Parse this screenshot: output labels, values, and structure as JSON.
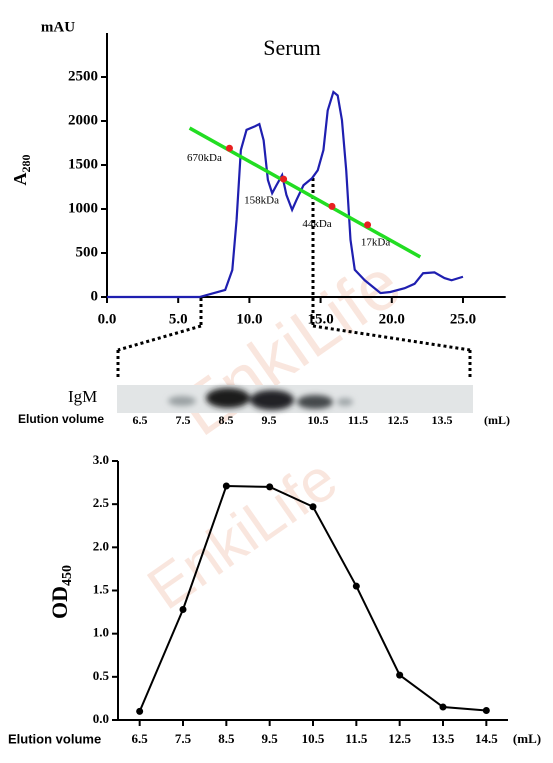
{
  "chart_data": [
    {
      "type": "line",
      "title": "Serum",
      "y_unit": "mAU",
      "y_label": "A",
      "y_label_sub": "280",
      "xlim": [
        0,
        28
      ],
      "xticks": [
        {
          "value": 0,
          "label": "0.0"
        },
        {
          "value": 5,
          "label": "5.0"
        },
        {
          "value": 10,
          "label": "10.0"
        },
        {
          "value": 15,
          "label": "15.0"
        },
        {
          "value": 20,
          "label": "20.0"
        },
        {
          "value": 25,
          "label": "25.0"
        }
      ],
      "ylim": [
        0,
        3000
      ],
      "yticks": [
        0,
        500,
        1000,
        1500,
        2000,
        2500
      ],
      "series": [
        {
          "color": "#1f1fb0",
          "x": [
            0,
            6.5,
            8.3,
            8.8,
            9.1,
            9.4,
            9.8,
            10.4,
            10.7,
            11.0,
            11.3,
            11.6,
            11.9,
            12.3,
            12.6,
            13.0,
            13.3,
            13.8,
            14.4,
            14.8,
            15.2,
            15.5,
            15.9,
            16.2,
            16.5,
            16.8,
            17.1,
            17.4,
            18.1,
            19.2,
            19.9,
            20.9,
            21.6,
            22.2,
            23.0,
            23.7,
            24.2,
            25.0
          ],
          "values": [
            0,
            0,
            80,
            307,
            875,
            1670,
            1900,
            1940,
            1965,
            1780,
            1330,
            1180,
            1270,
            1385,
            1160,
            990,
            1100,
            1270,
            1350,
            1440,
            1670,
            2120,
            2330,
            2290,
            2010,
            1440,
            650,
            310,
            190,
            45,
            57,
            100,
            150,
            270,
            280,
            215,
            190,
            230
          ]
        },
        {
          "color": "#22dd22",
          "x": [
            5.8,
            22.0
          ],
          "values": [
            1920,
            455
          ]
        },
        {
          "color": "#e82020",
          "marker": true,
          "x": [
            8.6,
            12.4,
            15.8,
            18.3
          ],
          "values": [
            1690,
            1340,
            1030,
            820
          ],
          "labels": [
            "670kDa",
            "158kDa",
            "44kDa",
            "17kDa"
          ]
        }
      ]
    },
    {
      "type": "line",
      "y_label": "OD",
      "y_label_sub": "450",
      "x_label": "Elution volume",
      "x_unit": "(mL)",
      "xlim": [
        6,
        15
      ],
      "xticks": [
        6.5,
        7.5,
        8.5,
        9.5,
        10.5,
        11.5,
        12.5,
        13.5,
        14.5
      ],
      "ylim": [
        0,
        3
      ],
      "yticks": [
        {
          "value": 0,
          "label": "0.0"
        },
        0.5,
        {
          "value": 1,
          "label": "1.0"
        },
        1.5,
        {
          "value": 2,
          "label": "2.0"
        },
        2.5,
        {
          "value": 3,
          "label": "3.0"
        }
      ],
      "series": [
        {
          "color": "#000000",
          "marker": true,
          "x": [
            6.5,
            7.5,
            8.5,
            9.5,
            10.5,
            11.5,
            12.5,
            13.5,
            14.5
          ],
          "values": [
            0.1,
            1.28,
            2.71,
            2.7,
            2.47,
            1.55,
            0.52,
            0.15,
            0.11
          ]
        }
      ]
    }
  ],
  "blot": {
    "label": "IgM",
    "x_label": "Elution volume",
    "lanes": [
      "6.5",
      "7.5",
      "8.5",
      "9.5",
      "10.5",
      "11.5",
      "12.5",
      "13.5"
    ],
    "unit": "(mL)"
  },
  "watermark": "EnkiLife"
}
